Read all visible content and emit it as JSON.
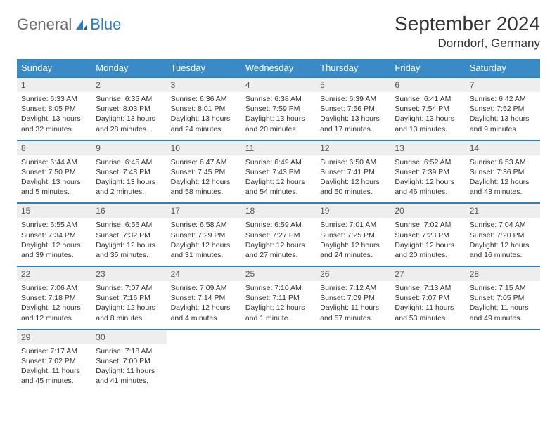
{
  "logo": {
    "text1": "General",
    "text2": "Blue"
  },
  "title": "September 2024",
  "location": "Dorndorf, Germany",
  "colors": {
    "header_bg": "#3a8ac5",
    "header_text": "#ffffff",
    "border": "#2f7fbf",
    "daynum_bg": "#eeeeee",
    "page_bg": "#ffffff",
    "logo_gray": "#6b6b6b",
    "logo_blue": "#2f7fbf",
    "text": "#333333"
  },
  "fonts": {
    "title_size_pt": 21,
    "location_size_pt": 13,
    "dayhead_size_pt": 10,
    "daynum_size_pt": 9,
    "body_size_pt": 8
  },
  "day_headers": [
    "Sunday",
    "Monday",
    "Tuesday",
    "Wednesday",
    "Thursday",
    "Friday",
    "Saturday"
  ],
  "weeks": [
    [
      {
        "n": "1",
        "sunrise": "6:33 AM",
        "sunset": "8:05 PM",
        "daylight": "13 hours and 32 minutes."
      },
      {
        "n": "2",
        "sunrise": "6:35 AM",
        "sunset": "8:03 PM",
        "daylight": "13 hours and 28 minutes."
      },
      {
        "n": "3",
        "sunrise": "6:36 AM",
        "sunset": "8:01 PM",
        "daylight": "13 hours and 24 minutes."
      },
      {
        "n": "4",
        "sunrise": "6:38 AM",
        "sunset": "7:59 PM",
        "daylight": "13 hours and 20 minutes."
      },
      {
        "n": "5",
        "sunrise": "6:39 AM",
        "sunset": "7:56 PM",
        "daylight": "13 hours and 17 minutes."
      },
      {
        "n": "6",
        "sunrise": "6:41 AM",
        "sunset": "7:54 PM",
        "daylight": "13 hours and 13 minutes."
      },
      {
        "n": "7",
        "sunrise": "6:42 AM",
        "sunset": "7:52 PM",
        "daylight": "13 hours and 9 minutes."
      }
    ],
    [
      {
        "n": "8",
        "sunrise": "6:44 AM",
        "sunset": "7:50 PM",
        "daylight": "13 hours and 5 minutes."
      },
      {
        "n": "9",
        "sunrise": "6:45 AM",
        "sunset": "7:48 PM",
        "daylight": "13 hours and 2 minutes."
      },
      {
        "n": "10",
        "sunrise": "6:47 AM",
        "sunset": "7:45 PM",
        "daylight": "12 hours and 58 minutes."
      },
      {
        "n": "11",
        "sunrise": "6:49 AM",
        "sunset": "7:43 PM",
        "daylight": "12 hours and 54 minutes."
      },
      {
        "n": "12",
        "sunrise": "6:50 AM",
        "sunset": "7:41 PM",
        "daylight": "12 hours and 50 minutes."
      },
      {
        "n": "13",
        "sunrise": "6:52 AM",
        "sunset": "7:39 PM",
        "daylight": "12 hours and 46 minutes."
      },
      {
        "n": "14",
        "sunrise": "6:53 AM",
        "sunset": "7:36 PM",
        "daylight": "12 hours and 43 minutes."
      }
    ],
    [
      {
        "n": "15",
        "sunrise": "6:55 AM",
        "sunset": "7:34 PM",
        "daylight": "12 hours and 39 minutes."
      },
      {
        "n": "16",
        "sunrise": "6:56 AM",
        "sunset": "7:32 PM",
        "daylight": "12 hours and 35 minutes."
      },
      {
        "n": "17",
        "sunrise": "6:58 AM",
        "sunset": "7:29 PM",
        "daylight": "12 hours and 31 minutes."
      },
      {
        "n": "18",
        "sunrise": "6:59 AM",
        "sunset": "7:27 PM",
        "daylight": "12 hours and 27 minutes."
      },
      {
        "n": "19",
        "sunrise": "7:01 AM",
        "sunset": "7:25 PM",
        "daylight": "12 hours and 24 minutes."
      },
      {
        "n": "20",
        "sunrise": "7:02 AM",
        "sunset": "7:23 PM",
        "daylight": "12 hours and 20 minutes."
      },
      {
        "n": "21",
        "sunrise": "7:04 AM",
        "sunset": "7:20 PM",
        "daylight": "12 hours and 16 minutes."
      }
    ],
    [
      {
        "n": "22",
        "sunrise": "7:06 AM",
        "sunset": "7:18 PM",
        "daylight": "12 hours and 12 minutes."
      },
      {
        "n": "23",
        "sunrise": "7:07 AM",
        "sunset": "7:16 PM",
        "daylight": "12 hours and 8 minutes."
      },
      {
        "n": "24",
        "sunrise": "7:09 AM",
        "sunset": "7:14 PM",
        "daylight": "12 hours and 4 minutes."
      },
      {
        "n": "25",
        "sunrise": "7:10 AM",
        "sunset": "7:11 PM",
        "daylight": "12 hours and 1 minute."
      },
      {
        "n": "26",
        "sunrise": "7:12 AM",
        "sunset": "7:09 PM",
        "daylight": "11 hours and 57 minutes."
      },
      {
        "n": "27",
        "sunrise": "7:13 AM",
        "sunset": "7:07 PM",
        "daylight": "11 hours and 53 minutes."
      },
      {
        "n": "28",
        "sunrise": "7:15 AM",
        "sunset": "7:05 PM",
        "daylight": "11 hours and 49 minutes."
      }
    ],
    [
      {
        "n": "29",
        "sunrise": "7:17 AM",
        "sunset": "7:02 PM",
        "daylight": "11 hours and 45 minutes."
      },
      {
        "n": "30",
        "sunrise": "7:18 AM",
        "sunset": "7:00 PM",
        "daylight": "11 hours and 41 minutes."
      },
      null,
      null,
      null,
      null,
      null
    ]
  ],
  "labels": {
    "sunrise": "Sunrise:",
    "sunset": "Sunset:",
    "daylight": "Daylight:"
  }
}
